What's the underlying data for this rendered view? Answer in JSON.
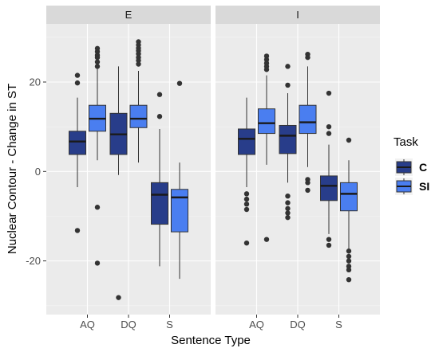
{
  "chart_data": {
    "type": "boxplot",
    "ylabel": "Nuclear Contour - Change in ST",
    "xlabel": "Sentence Type",
    "ylim": [
      -32,
      33
    ],
    "yticks": [
      -20,
      0,
      20
    ],
    "categories": [
      "AQ",
      "DQ",
      "S"
    ],
    "legend": {
      "title": "Task",
      "position": "right",
      "entries": [
        {
          "key": "C",
          "label": "C",
          "color": "#283d8a"
        },
        {
          "key": "SI",
          "label": "SI",
          "color": "#4a7ef0"
        }
      ]
    },
    "facets": [
      {
        "label": "E",
        "boxes": [
          {
            "category": "AQ",
            "task": "C",
            "q1": 3.8,
            "median": 6.7,
            "q3": 9.0,
            "lower": -3.5,
            "upper": 16.5,
            "outliers": [
              21.5,
              19.8,
              -13.2
            ]
          },
          {
            "category": "AQ",
            "task": "SI",
            "q1": 9.0,
            "median": 11.8,
            "q3": 14.8,
            "lower": 2.5,
            "upper": 23.0,
            "outliers": [
              27.5,
              26.8,
              26.0,
              25.5,
              24.5,
              23.5,
              -8.0,
              -20.5
            ]
          },
          {
            "category": "DQ",
            "task": "C",
            "q1": 3.8,
            "median": 8.3,
            "q3": 13.0,
            "lower": -0.8,
            "upper": 23.5,
            "outliers": [
              -28.2
            ]
          },
          {
            "category": "DQ",
            "task": "SI",
            "q1": 9.8,
            "median": 11.8,
            "q3": 14.8,
            "lower": 2.0,
            "upper": 22.5,
            "outliers": [
              29.0,
              28.3,
              27.6,
              27.0,
              26.3,
              25.5,
              24.8,
              24.0
            ]
          },
          {
            "category": "S",
            "task": "C",
            "q1": -11.8,
            "median": -5.2,
            "q3": -2.5,
            "lower": -21.2,
            "upper": 9.5,
            "outliers": [
              17.2,
              12.3
            ]
          },
          {
            "category": "S",
            "task": "SI",
            "q1": -13.5,
            "median": -5.8,
            "q3": -4.0,
            "lower": -24.0,
            "upper": 2.0,
            "outliers": [
              19.7
            ]
          }
        ]
      },
      {
        "label": "I",
        "boxes": [
          {
            "category": "AQ",
            "task": "C",
            "q1": 3.8,
            "median": 7.3,
            "q3": 9.5,
            "lower": -3.5,
            "upper": 16.5,
            "outliers": [
              -5.0,
              -6.2,
              -7.3,
              -8.5,
              -16.0
            ]
          },
          {
            "category": "AQ",
            "task": "SI",
            "q1": 8.5,
            "median": 10.8,
            "q3": 14.0,
            "lower": 1.5,
            "upper": 21.5,
            "outliers": [
              25.8,
              25.0,
              24.2,
              23.5,
              22.8,
              -15.2
            ]
          },
          {
            "category": "DQ",
            "task": "C",
            "q1": 4.0,
            "median": 8.0,
            "q3": 10.3,
            "lower": -2.5,
            "upper": 17.5,
            "outliers": [
              23.5,
              19.3,
              -5.5,
              -7.0,
              -8.3,
              -9.3,
              -10.3
            ]
          },
          {
            "category": "DQ",
            "task": "SI",
            "q1": 8.5,
            "median": 11.0,
            "q3": 14.8,
            "lower": 1.0,
            "upper": 23.5,
            "outliers": [
              26.2,
              25.5,
              -1.8,
              -2.5,
              -4.2
            ]
          },
          {
            "category": "S",
            "task": "C",
            "q1": -6.5,
            "median": -3.2,
            "q3": -1.0,
            "lower": -14.0,
            "upper": 6.0,
            "outliers": [
              17.5,
              10.0,
              8.5,
              -15.2,
              -16.5
            ]
          },
          {
            "category": "S",
            "task": "SI",
            "q1": -8.8,
            "median": -5.0,
            "q3": -2.5,
            "lower": -17.5,
            "upper": 2.5,
            "outliers": [
              7.0,
              -17.8,
              -19.0,
              -20.0,
              -21.2,
              -22.0,
              -24.2
            ]
          }
        ]
      }
    ]
  }
}
